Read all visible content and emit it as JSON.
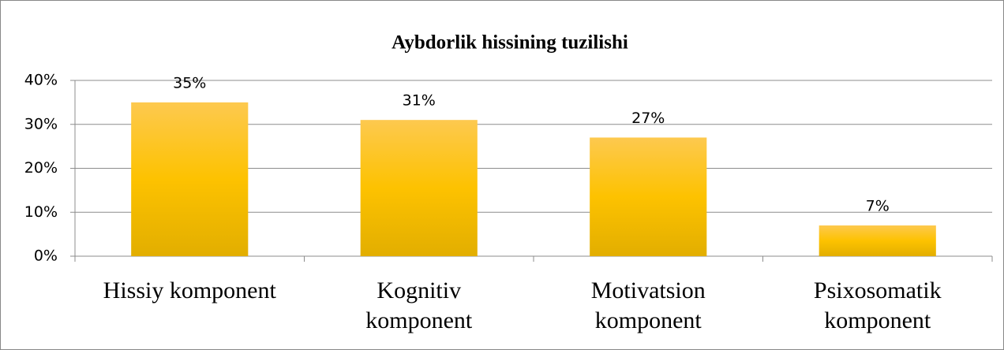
{
  "chart_data": {
    "type": "bar",
    "title": "Aybdorlik hissining tuzilishi",
    "categories": [
      "Hissiy komponent",
      "Kognitiv komponent",
      "Motivatsion komponent",
      "Psixosomatik komponent"
    ],
    "values": [
      35,
      31,
      27,
      7
    ],
    "value_labels": [
      "35%",
      "31%",
      "27%",
      "7%"
    ],
    "color": "#fdc52c",
    "ylim": [
      0,
      40
    ],
    "yticks": [
      {
        "value": 0,
        "label": "0%"
      },
      {
        "value": 10,
        "label": "10%"
      },
      {
        "value": 20,
        "label": "20%"
      },
      {
        "value": 30,
        "label": "30%"
      },
      {
        "value": 40,
        "label": "40%"
      }
    ],
    "grid": true
  }
}
